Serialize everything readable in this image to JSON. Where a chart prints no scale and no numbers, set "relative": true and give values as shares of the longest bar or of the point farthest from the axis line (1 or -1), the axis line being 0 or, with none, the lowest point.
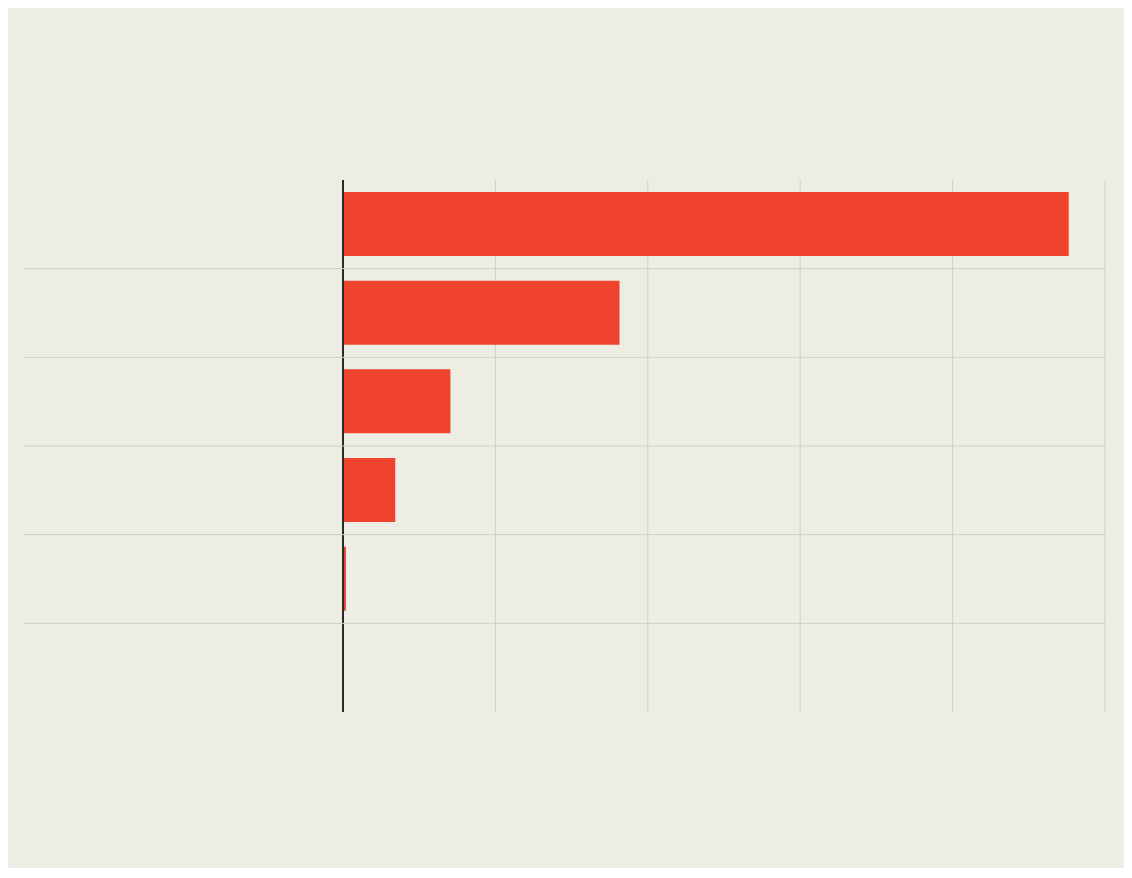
{
  "chart_data": {
    "type": "bar",
    "orientation": "horizontal",
    "relative": true,
    "categories": [
      null,
      null,
      null,
      null,
      null
    ],
    "values": [
      1,
      0.381,
      0.148,
      0.072,
      0.004
    ],
    "color": "#ef432d",
    "grid": true
  }
}
